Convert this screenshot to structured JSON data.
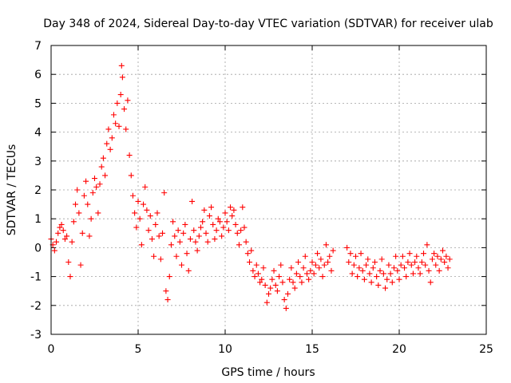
{
  "chart_data": {
    "type": "scatter",
    "title": "Day 348 of 2024, Sidereal Day-to-day VTEC variation (SDTVAR) for receiver ulab",
    "xlabel": "GPS time / hours",
    "ylabel": "SDTVAR / TECUs",
    "xlim": [
      0,
      25
    ],
    "ylim": [
      -3,
      7
    ],
    "x_ticks": [
      0,
      5,
      10,
      15,
      20,
      25
    ],
    "x_tick_labels": [
      "0",
      "5",
      "10",
      "15",
      "20",
      "25"
    ],
    "y_ticks": [
      -3,
      -2,
      -1,
      0,
      1,
      2,
      3,
      4,
      5,
      6,
      7
    ],
    "y_tick_labels": [
      "-3",
      "-2",
      "-1",
      "0",
      "1",
      "2",
      "3",
      "4",
      "5",
      "6",
      "7"
    ],
    "grid": true,
    "marker": "plus",
    "color": "#ff0000",
    "series": [
      {
        "name": "ulab SDTVAR",
        "points": [
          [
            0.0,
            0.3
          ],
          [
            0.1,
            0.1
          ],
          [
            0.2,
            -0.1
          ],
          [
            0.3,
            0.2
          ],
          [
            0.4,
            0.5
          ],
          [
            0.5,
            0.7
          ],
          [
            0.6,
            0.8
          ],
          [
            0.7,
            0.6
          ],
          [
            0.8,
            0.3
          ],
          [
            0.9,
            0.4
          ],
          [
            1.0,
            -0.5
          ],
          [
            1.1,
            -1.0
          ],
          [
            1.2,
            0.2
          ],
          [
            1.3,
            0.9
          ],
          [
            1.4,
            1.5
          ],
          [
            1.5,
            2.0
          ],
          [
            1.6,
            1.2
          ],
          [
            1.7,
            -0.6
          ],
          [
            1.8,
            0.5
          ],
          [
            1.9,
            1.8
          ],
          [
            2.0,
            2.3
          ],
          [
            2.1,
            1.5
          ],
          [
            2.2,
            0.4
          ],
          [
            2.3,
            1.0
          ],
          [
            2.4,
            1.9
          ],
          [
            2.5,
            2.4
          ],
          [
            2.6,
            2.1
          ],
          [
            2.7,
            1.2
          ],
          [
            2.8,
            2.2
          ],
          [
            2.9,
            2.8
          ],
          [
            3.0,
            3.1
          ],
          [
            3.1,
            2.5
          ],
          [
            3.2,
            3.6
          ],
          [
            3.3,
            4.1
          ],
          [
            3.4,
            3.4
          ],
          [
            3.5,
            3.8
          ],
          [
            3.6,
            4.6
          ],
          [
            3.7,
            4.3
          ],
          [
            3.8,
            5.0
          ],
          [
            3.9,
            4.2
          ],
          [
            4.0,
            5.3
          ],
          [
            4.05,
            6.3
          ],
          [
            4.1,
            5.9
          ],
          [
            4.2,
            4.8
          ],
          [
            4.3,
            4.1
          ],
          [
            4.4,
            5.1
          ],
          [
            4.5,
            3.2
          ],
          [
            4.6,
            2.5
          ],
          [
            4.7,
            1.8
          ],
          [
            4.8,
            1.2
          ],
          [
            4.9,
            0.7
          ],
          [
            5.0,
            1.6
          ],
          [
            5.1,
            1.0
          ],
          [
            5.2,
            0.1
          ],
          [
            5.3,
            1.5
          ],
          [
            5.4,
            2.1
          ],
          [
            5.5,
            1.3
          ],
          [
            5.6,
            0.6
          ],
          [
            5.7,
            1.1
          ],
          [
            5.8,
            0.3
          ],
          [
            5.9,
            -0.3
          ],
          [
            6.0,
            0.8
          ],
          [
            6.1,
            1.2
          ],
          [
            6.2,
            0.4
          ],
          [
            6.3,
            -0.4
          ],
          [
            6.4,
            0.5
          ],
          [
            6.5,
            1.9
          ],
          [
            6.6,
            -1.5
          ],
          [
            6.7,
            -1.8
          ],
          [
            6.8,
            -1.0
          ],
          [
            6.9,
            0.1
          ],
          [
            7.0,
            0.9
          ],
          [
            7.1,
            0.4
          ],
          [
            7.2,
            -0.3
          ],
          [
            7.3,
            0.6
          ],
          [
            7.4,
            0.2
          ],
          [
            7.5,
            -0.6
          ],
          [
            7.6,
            0.5
          ],
          [
            7.7,
            0.8
          ],
          [
            7.8,
            -0.2
          ],
          [
            7.9,
            -0.8
          ],
          [
            8.0,
            0.3
          ],
          [
            8.1,
            1.6
          ],
          [
            8.2,
            0.6
          ],
          [
            8.3,
            0.2
          ],
          [
            8.4,
            -0.1
          ],
          [
            8.5,
            0.4
          ],
          [
            8.6,
            0.7
          ],
          [
            8.7,
            0.9
          ],
          [
            8.8,
            1.3
          ],
          [
            8.9,
            0.5
          ],
          [
            9.0,
            0.2
          ],
          [
            9.1,
            1.1
          ],
          [
            9.2,
            1.4
          ],
          [
            9.3,
            0.8
          ],
          [
            9.4,
            0.3
          ],
          [
            9.5,
            0.6
          ],
          [
            9.6,
            1.0
          ],
          [
            9.7,
            0.9
          ],
          [
            9.8,
            0.4
          ],
          [
            9.9,
            0.7
          ],
          [
            10.0,
            1.2
          ],
          [
            10.1,
            0.9
          ],
          [
            10.2,
            0.6
          ],
          [
            10.3,
            1.4
          ],
          [
            10.4,
            1.1
          ],
          [
            10.5,
            1.3
          ],
          [
            10.6,
            0.8
          ],
          [
            10.7,
            0.5
          ],
          [
            10.8,
            0.1
          ],
          [
            10.9,
            0.6
          ],
          [
            11.0,
            1.4
          ],
          [
            11.1,
            0.7
          ],
          [
            11.2,
            0.2
          ],
          [
            11.3,
            -0.2
          ],
          [
            11.4,
            -0.5
          ],
          [
            11.5,
            -0.1
          ],
          [
            11.6,
            -0.8
          ],
          [
            11.7,
            -1.0
          ],
          [
            11.8,
            -0.6
          ],
          [
            11.9,
            -0.9
          ],
          [
            12.0,
            -1.2
          ],
          [
            12.1,
            -1.1
          ],
          [
            12.2,
            -0.7
          ],
          [
            12.3,
            -1.3
          ],
          [
            12.4,
            -1.9
          ],
          [
            12.5,
            -1.6
          ],
          [
            12.6,
            -1.4
          ],
          [
            12.7,
            -1.1
          ],
          [
            12.8,
            -0.8
          ],
          [
            12.9,
            -1.3
          ],
          [
            13.0,
            -1.5
          ],
          [
            13.1,
            -1.0
          ],
          [
            13.2,
            -0.6
          ],
          [
            13.3,
            -1.2
          ],
          [
            13.4,
            -1.8
          ],
          [
            13.5,
            -2.1
          ],
          [
            13.6,
            -1.6
          ],
          [
            13.7,
            -1.1
          ],
          [
            13.8,
            -0.7
          ],
          [
            13.9,
            -1.2
          ],
          [
            14.0,
            -1.4
          ],
          [
            14.1,
            -0.9
          ],
          [
            14.2,
            -0.5
          ],
          [
            14.3,
            -1.0
          ],
          [
            14.4,
            -1.2
          ],
          [
            14.5,
            -0.7
          ],
          [
            14.6,
            -0.3
          ],
          [
            14.7,
            -0.9
          ],
          [
            14.8,
            -1.1
          ],
          [
            14.9,
            -0.8
          ],
          [
            15.0,
            -0.5
          ],
          [
            15.1,
            -0.9
          ],
          [
            15.2,
            -0.6
          ],
          [
            15.3,
            -0.2
          ],
          [
            15.4,
            -0.7
          ],
          [
            15.5,
            -0.4
          ],
          [
            15.6,
            -1.0
          ],
          [
            15.7,
            -0.6
          ],
          [
            15.8,
            0.1
          ],
          [
            15.9,
            -0.5
          ],
          [
            16.0,
            -0.3
          ],
          [
            16.1,
            -0.8
          ],
          [
            16.2,
            -0.1
          ],
          [
            17.0,
            0.0
          ],
          [
            17.1,
            -0.5
          ],
          [
            17.2,
            -0.2
          ],
          [
            17.3,
            -0.9
          ],
          [
            17.4,
            -0.6
          ],
          [
            17.5,
            -0.3
          ],
          [
            17.6,
            -1.0
          ],
          [
            17.7,
            -0.7
          ],
          [
            17.8,
            -0.2
          ],
          [
            17.9,
            -0.8
          ],
          [
            18.0,
            -1.1
          ],
          [
            18.1,
            -0.6
          ],
          [
            18.2,
            -0.4
          ],
          [
            18.3,
            -0.9
          ],
          [
            18.4,
            -1.2
          ],
          [
            18.5,
            -0.7
          ],
          [
            18.6,
            -0.5
          ],
          [
            18.7,
            -1.0
          ],
          [
            18.8,
            -1.3
          ],
          [
            18.9,
            -0.8
          ],
          [
            19.0,
            -0.4
          ],
          [
            19.1,
            -0.9
          ],
          [
            19.2,
            -1.4
          ],
          [
            19.3,
            -1.1
          ],
          [
            19.4,
            -0.6
          ],
          [
            19.5,
            -0.9
          ],
          [
            19.6,
            -1.2
          ],
          [
            19.7,
            -0.7
          ],
          [
            19.8,
            -0.3
          ],
          [
            19.9,
            -0.8
          ],
          [
            20.0,
            -1.1
          ],
          [
            20.1,
            -0.6
          ],
          [
            20.2,
            -0.3
          ],
          [
            20.3,
            -0.7
          ],
          [
            20.4,
            -1.0
          ],
          [
            20.5,
            -0.5
          ],
          [
            20.6,
            -0.2
          ],
          [
            20.7,
            -0.6
          ],
          [
            20.8,
            -0.9
          ],
          [
            20.9,
            -0.5
          ],
          [
            21.0,
            -0.3
          ],
          [
            21.1,
            -0.7
          ],
          [
            21.2,
            -0.9
          ],
          [
            21.3,
            -0.5
          ],
          [
            21.4,
            -0.2
          ],
          [
            21.5,
            -0.6
          ],
          [
            21.6,
            0.1
          ],
          [
            21.7,
            -0.8
          ],
          [
            21.8,
            -1.2
          ],
          [
            21.9,
            -0.4
          ],
          [
            22.0,
            -0.2
          ],
          [
            22.1,
            -0.6
          ],
          [
            22.2,
            -0.3
          ],
          [
            22.3,
            -0.8
          ],
          [
            22.4,
            -0.4
          ],
          [
            22.5,
            -0.1
          ],
          [
            22.6,
            -0.5
          ],
          [
            22.7,
            -0.3
          ],
          [
            22.8,
            -0.7
          ],
          [
            22.9,
            -0.4
          ]
        ]
      }
    ]
  }
}
